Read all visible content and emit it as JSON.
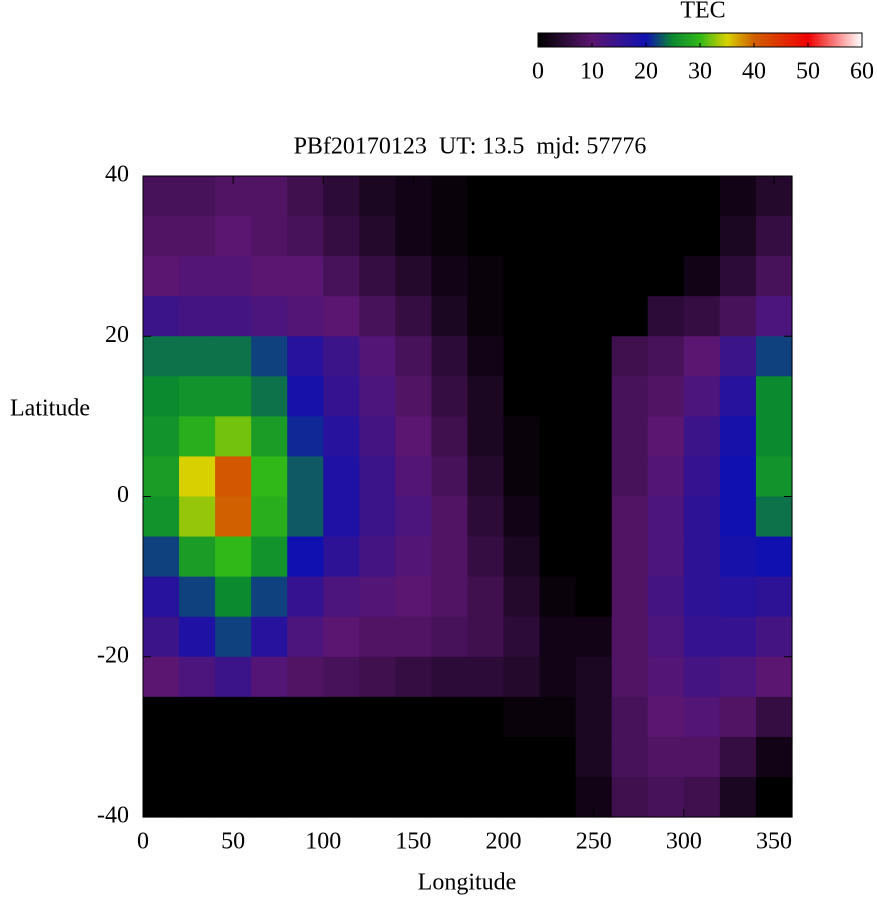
{
  "chart_data": {
    "type": "heatmap",
    "title": "PBf20170123  UT: 13.5  mjd: 57776",
    "xlabel": "Longitude",
    "ylabel": "Latitude",
    "colorbar_label": "TEC",
    "x": [
      10,
      30,
      50,
      70,
      90,
      110,
      130,
      150,
      170,
      190,
      210,
      230,
      250,
      270,
      290,
      310,
      330,
      350
    ],
    "y": [
      37.5,
      32.5,
      27.5,
      22.5,
      17.5,
      12.5,
      7.5,
      2.5,
      -2.5,
      -7.5,
      -12.5,
      -17.5,
      -22.5,
      -27.5,
      -32.5,
      -37.5
    ],
    "z": [
      [
        8,
        8,
        9,
        9,
        7,
        5,
        3,
        2,
        1,
        0,
        0,
        0,
        0,
        0,
        0,
        0,
        2,
        4
      ],
      [
        9,
        9,
        10,
        9,
        8,
        6,
        4,
        2,
        1,
        0,
        0,
        0,
        0,
        0,
        0,
        0,
        3,
        6
      ],
      [
        10,
        11,
        11,
        10,
        10,
        8,
        6,
        4,
        2,
        1,
        0,
        0,
        0,
        0,
        0,
        2,
        5,
        8
      ],
      [
        14,
        13,
        13,
        12,
        11,
        10,
        8,
        6,
        3,
        1,
        0,
        0,
        0,
        0,
        5,
        6,
        8,
        12
      ],
      [
        24,
        24,
        24,
        22,
        17,
        14,
        11,
        8,
        5,
        2,
        0,
        0,
        0,
        7,
        8,
        10,
        14,
        22
      ],
      [
        25,
        26,
        26,
        24,
        19,
        15,
        12,
        9,
        6,
        3,
        0,
        0,
        0,
        8,
        9,
        12,
        17,
        25
      ],
      [
        26,
        29,
        32,
        27,
        21,
        17,
        13,
        10,
        7,
        3,
        1,
        0,
        0,
        8,
        10,
        14,
        19,
        25
      ],
      [
        27,
        35,
        41,
        30,
        23,
        18,
        14,
        11,
        8,
        4,
        1,
        0,
        0,
        8,
        11,
        15,
        20,
        26
      ],
      [
        26,
        33,
        40,
        29,
        23,
        18,
        14,
        12,
        9,
        5,
        2,
        0,
        0,
        9,
        12,
        16,
        20,
        24
      ],
      [
        22,
        27,
        30,
        26,
        20,
        16,
        13,
        11,
        9,
        6,
        3,
        0,
        0,
        9,
        12,
        16,
        19,
        20
      ],
      [
        17,
        22,
        25,
        22,
        15,
        12,
        11,
        10,
        9,
        7,
        4,
        1,
        0,
        9,
        13,
        16,
        17,
        16
      ],
      [
        14,
        18,
        22,
        17,
        12,
        10,
        9,
        9,
        8,
        7,
        5,
        2,
        2,
        9,
        12,
        15,
        15,
        13
      ],
      [
        10,
        12,
        14,
        11,
        9,
        8,
        7,
        6,
        5,
        5,
        4,
        2,
        3,
        9,
        11,
        13,
        12,
        10
      ],
      [
        0,
        0,
        0,
        0,
        0,
        0,
        0,
        0,
        0,
        0,
        1,
        1,
        3,
        8,
        10,
        11,
        9,
        6
      ],
      [
        0,
        0,
        0,
        0,
        0,
        0,
        0,
        0,
        0,
        0,
        0,
        0,
        3,
        8,
        9,
        9,
        6,
        2
      ],
      [
        0,
        0,
        0,
        0,
        0,
        0,
        0,
        0,
        0,
        0,
        0,
        0,
        2,
        7,
        8,
        7,
        3,
        0
      ]
    ],
    "xlim": [
      0,
      360
    ],
    "ylim": [
      -40,
      40
    ],
    "xticks": [
      0,
      50,
      100,
      150,
      200,
      250,
      300,
      350
    ],
    "yticks": [
      -40,
      -20,
      0,
      20,
      40
    ],
    "clim": [
      0,
      60
    ],
    "cticks": [
      0,
      10,
      20,
      30,
      40,
      50,
      60
    ],
    "colorscale": [
      {
        "value": 0,
        "color": "#000000"
      },
      {
        "value": 10,
        "color": "#5a1670"
      },
      {
        "value": 20,
        "color": "#1010b0"
      },
      {
        "value": 25,
        "color": "#0c8a30"
      },
      {
        "value": 30,
        "color": "#30b818"
      },
      {
        "value": 35,
        "color": "#d8d000"
      },
      {
        "value": 40,
        "color": "#d06000"
      },
      {
        "value": 50,
        "color": "#f00000"
      },
      {
        "value": 60,
        "color": "#ffffff"
      }
    ]
  }
}
